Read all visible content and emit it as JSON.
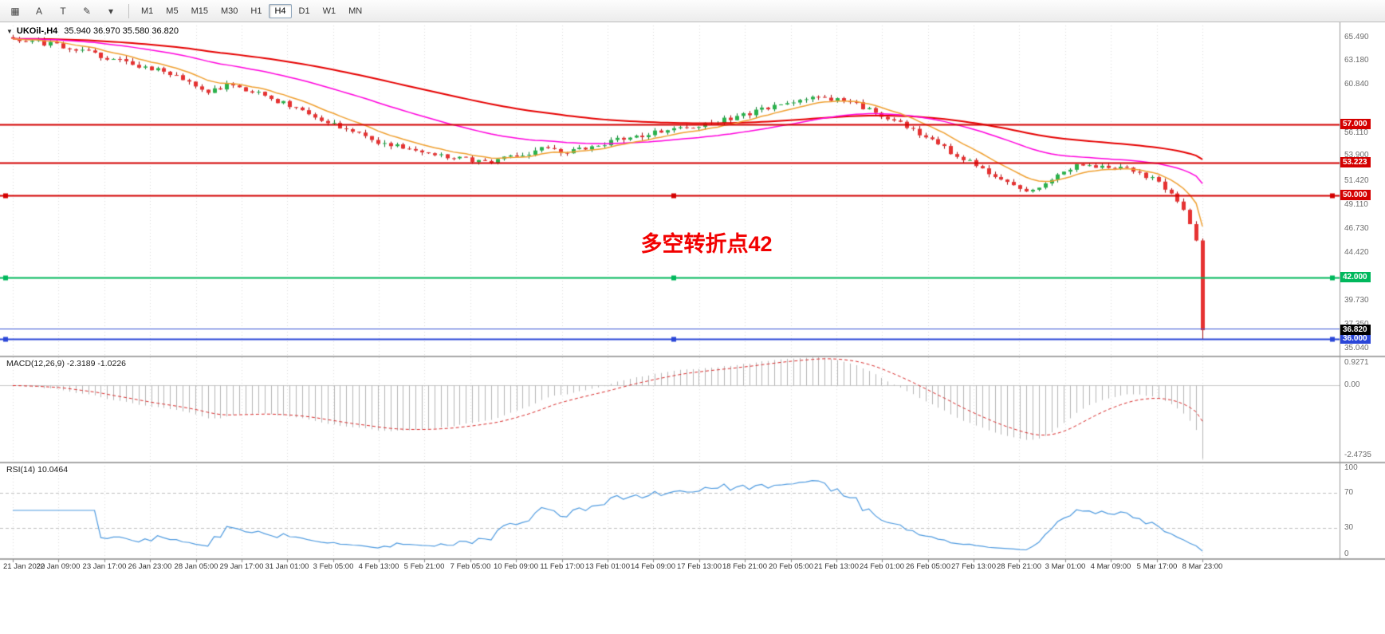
{
  "toolbar": {
    "tools": [
      {
        "name": "charts-grid-tool-button",
        "glyph": "▦"
      },
      {
        "name": "label-tool-button",
        "glyph": "A"
      },
      {
        "name": "text-tool-button",
        "glyph": "T"
      },
      {
        "name": "draw-tool-button",
        "glyph": "✎"
      },
      {
        "name": "draw-tool-caret-button",
        "glyph": "▾"
      }
    ],
    "timeframes": [
      "M1",
      "M5",
      "M15",
      "M30",
      "H1",
      "H4",
      "D1",
      "W1",
      "MN"
    ],
    "active_timeframe": "H4"
  },
  "chart": {
    "marker": "▼",
    "symbol_tf": "UKOil-,H4",
    "ohlc": "35.940 36.970 35.580 36.820",
    "annotation": "多空转折点42",
    "current_price_label": "36.820",
    "current_price_value": 36.82,
    "y_ticks": [
      {
        "v": 65.49,
        "label": "65.490"
      },
      {
        "v": 63.18,
        "label": "63.180"
      },
      {
        "v": 60.84,
        "label": "60.840"
      },
      {
        "v": 56.11,
        "label": "56.110"
      },
      {
        "v": 53.9,
        "label": "53.900"
      },
      {
        "v": 51.42,
        "label": "51.420"
      },
      {
        "v": 49.11,
        "label": "49.110"
      },
      {
        "v": 46.73,
        "label": "46.730"
      },
      {
        "v": 44.42,
        "label": "44.420"
      },
      {
        "v": 39.73,
        "label": "39.730"
      },
      {
        "v": 37.35,
        "label": "37.350"
      },
      {
        "v": 35.04,
        "label": "35.040"
      }
    ],
    "levels": [
      {
        "v": 57.0,
        "label": "57.000",
        "color": "#d40000",
        "lw": 2,
        "handles": false
      },
      {
        "v": 53.223,
        "label": "53.223",
        "color": "#d40000",
        "lw": 2,
        "handles": false
      },
      {
        "v": 50.0,
        "label": "50.000",
        "color": "#d40000",
        "lw": 2,
        "handles": true
      },
      {
        "v": 42.0,
        "label": "42.000",
        "color": "#00b85c",
        "lw": 2,
        "handles": true
      },
      {
        "v": 37.0,
        "label": null,
        "color": "#3a55d4",
        "lw": 1,
        "handles": false
      },
      {
        "v": 36.0,
        "label": "36.000",
        "color": "#2a46d8",
        "lw": 2,
        "handles": true
      }
    ]
  },
  "macd": {
    "name": "MACD(12,26,9)",
    "values": "-2.3189 -1.0226",
    "scale_top": "0.9271",
    "scale_zero": "0.00",
    "scale_bottom": "-2.4735"
  },
  "rsi": {
    "name": "RSI(14)",
    "value": "10.0464",
    "scale": [
      "100",
      "70",
      "30",
      "0"
    ]
  },
  "x_axis": {
    "labels": [
      "21 Jan 2020",
      "22 Jan 09:00",
      "23 Jan 17:00",
      "26 Jan 23:00",
      "28 Jan 05:00",
      "29 Jan 17:00",
      "31 Jan 01:00",
      "3 Feb 05:00",
      "4 Feb 13:00",
      "5 Feb 21:00",
      "7 Feb 05:00",
      "10 Feb 09:00",
      "11 Feb 17:00",
      "13 Feb 01:00",
      "14 Feb 09:00",
      "17 Feb 13:00",
      "18 Feb 21:00",
      "20 Feb 05:00",
      "21 Feb 13:00",
      "24 Feb 01:00",
      "26 Feb 05:00",
      "27 Feb 13:00",
      "28 Feb 21:00",
      "3 Mar 01:00",
      "4 Mar 09:00",
      "5 Mar 17:00",
      "8 Mar 23:00"
    ]
  },
  "chart_data": {
    "type": "candlestick",
    "symbol": "UKOil-",
    "timeframe": "H4",
    "title": "UKOil-,H4 35.940 36.970 35.580 36.820",
    "last_bar": {
      "open": 35.94,
      "high": 36.97,
      "low": 35.58,
      "close": 36.82
    },
    "visible_price_range": [
      34.4,
      66.8
    ],
    "candle_count": 190,
    "close_keypoints": [
      [
        0,
        65.3
      ],
      [
        6,
        64.8
      ],
      [
        12,
        64.0
      ],
      [
        18,
        63.1
      ],
      [
        24,
        62.1
      ],
      [
        28,
        61.0
      ],
      [
        31,
        60.1
      ],
      [
        34,
        60.8
      ],
      [
        37,
        60.4
      ],
      [
        41,
        59.5
      ],
      [
        46,
        58.4
      ],
      [
        50,
        57.2
      ],
      [
        54,
        56.2
      ],
      [
        58,
        55.3
      ],
      [
        62,
        54.6
      ],
      [
        67,
        54.0
      ],
      [
        72,
        53.6
      ],
      [
        76,
        53.3
      ],
      [
        80,
        53.9
      ],
      [
        84,
        54.5
      ],
      [
        88,
        54.2
      ],
      [
        92,
        54.9
      ],
      [
        96,
        55.4
      ],
      [
        100,
        55.9
      ],
      [
        104,
        56.4
      ],
      [
        108,
        56.8
      ],
      [
        112,
        57.3
      ],
      [
        116,
        57.8
      ],
      [
        120,
        58.6
      ],
      [
        124,
        59.2
      ],
      [
        128,
        59.7
      ],
      [
        131,
        59.4
      ],
      [
        134,
        58.9
      ],
      [
        137,
        58.1
      ],
      [
        140,
        57.3
      ],
      [
        143,
        56.4
      ],
      [
        146,
        55.4
      ],
      [
        149,
        54.3
      ],
      [
        152,
        53.3
      ],
      [
        155,
        52.2
      ],
      [
        158,
        51.2
      ],
      [
        161,
        50.3
      ],
      [
        164,
        51.3
      ],
      [
        167,
        52.3
      ],
      [
        170,
        53.1
      ],
      [
        173,
        52.8
      ],
      [
        176,
        52.9
      ],
      [
        179,
        52.3
      ],
      [
        182,
        51.3
      ],
      [
        184,
        50.2
      ],
      [
        186,
        48.6
      ],
      [
        187,
        47.2
      ],
      [
        188,
        45.6
      ],
      [
        189,
        36.82
      ]
    ],
    "horizontal_levels": [
      57.0,
      53.223,
      50.0,
      42.0,
      37.0,
      36.0
    ],
    "moving_averages": [
      {
        "name": "fast",
        "period": 10,
        "color": "#f0a030"
      },
      {
        "name": "medium",
        "period": 40,
        "color": "#ff00dd"
      },
      {
        "name": "slow",
        "period": 90,
        "color": "#e60000"
      }
    ],
    "up_color": "#2bb24c",
    "up_edge": "#0e7a30",
    "down_color": "#e63232",
    "down_edge": "#a01010",
    "macd": {
      "params": [
        12,
        26,
        9
      ],
      "current": [
        -2.3189,
        -1.0226
      ],
      "range": [
        -2.4735,
        0.9271
      ],
      "histogram_color": "#b5b5b5",
      "signal_color": "#d92b2b"
    },
    "rsi": {
      "period": 14,
      "current": 10.0464,
      "range": [
        0,
        100
      ],
      "levels": [
        30,
        70
      ],
      "color": "#4f9be0"
    }
  }
}
